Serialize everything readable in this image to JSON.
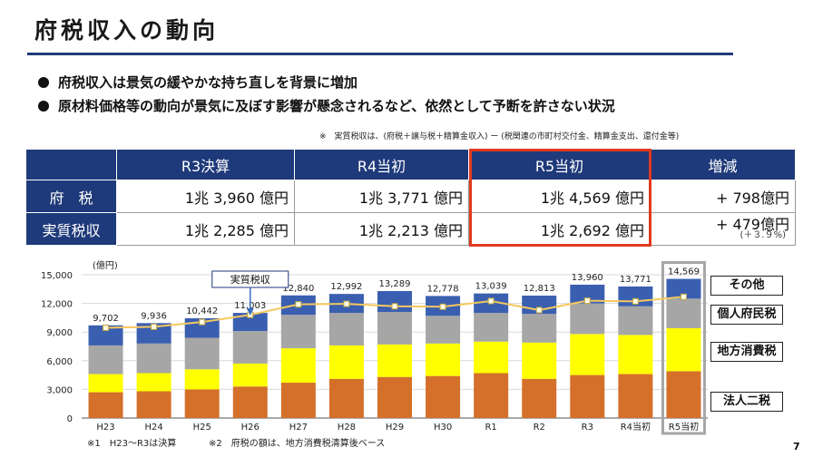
{
  "title": "府税収入の動向",
  "bullets": [
    "府税収入は景気の緩やかな持ち直しを背景に増加",
    "原材料価格等の動向が景気に及ぼす影響が懸念されるなど、依然として予断を許さない状況"
  ],
  "note": "※　実質税収は、(府税＋譲与税＋精算金収入) ー (税関連の市町村交付金、精算金支出、還付金等)",
  "table": {
    "headers": [
      "",
      "R3決算",
      "R4当初",
      "R5当初",
      "増減"
    ],
    "rows": [
      {
        "label": "府　税",
        "r3": "1兆 3,960 億円",
        "r4": "1兆 3,771 億円",
        "r5": "1兆 4,569 億円",
        "diff": "+ 798億円",
        "pct": ""
      },
      {
        "label": "実質税収",
        "r3": "1兆 2,285 億円",
        "r4": "1兆 2,213 億円",
        "r5": "1兆 2,692 億円",
        "diff": "+ 479億円",
        "pct": "(＋３.９%)"
      }
    ]
  },
  "chart_data": {
    "type": "bar",
    "stacked": true,
    "unit": "(億円)",
    "categories": [
      "H23",
      "H24",
      "H25",
      "H26",
      "H27",
      "H28",
      "H29",
      "H30",
      "R1",
      "R2",
      "R3",
      "R4当初",
      "R5当初"
    ],
    "ylim": [
      0,
      15000
    ],
    "yticks": [
      "0",
      "3,000",
      "6,000",
      "9,000",
      "12,000",
      "15,000"
    ],
    "series": [
      {
        "name": "法人二税",
        "color": "#d4702a",
        "values": [
          2700,
          2800,
          3000,
          3300,
          3700,
          4100,
          4300,
          4400,
          4700,
          4100,
          4500,
          4600,
          4900
        ]
      },
      {
        "name": "地方消費税",
        "color": "#ffff00",
        "values": [
          1900,
          1900,
          2100,
          2400,
          3600,
          3500,
          3400,
          3400,
          3300,
          3800,
          4300,
          4100,
          4500
        ]
      },
      {
        "name": "個人府民税",
        "color": "#a6a6a6",
        "values": [
          3000,
          3100,
          3300,
          3400,
          3500,
          3400,
          3400,
          2900,
          3000,
          3000,
          3200,
          3000,
          3100
        ]
      },
      {
        "name": "その他",
        "color": "#3a5fb0",
        "values": [
          2102,
          2136,
          2042,
          1903,
          2040,
          1992,
          2189,
          2078,
          2039,
          1913,
          1960,
          2071,
          2069
        ]
      }
    ],
    "totals": [
      "9,702",
      "9,936",
      "10,442",
      "11,003",
      "12,840",
      "12,992",
      "13,289",
      "12,778",
      "13,039",
      "12,813",
      "13,960",
      "13,771",
      "14,569"
    ],
    "line": {
      "name": "実質税収",
      "color": "#f6c85f",
      "values": [
        9450,
        9550,
        10050,
        10800,
        11900,
        11950,
        11700,
        11650,
        12250,
        11300,
        12285,
        12213,
        12692
      ]
    },
    "highlight_category": "R5当初"
  },
  "legend": [
    "その他",
    "個人府民税",
    "地方消費税",
    "法人二税"
  ],
  "line_label": "実質税収",
  "footnotes": [
    "※1　H23～R3は決算",
    "※2　府税の額は、地方消費税清算後ベース"
  ],
  "page_number": "7"
}
